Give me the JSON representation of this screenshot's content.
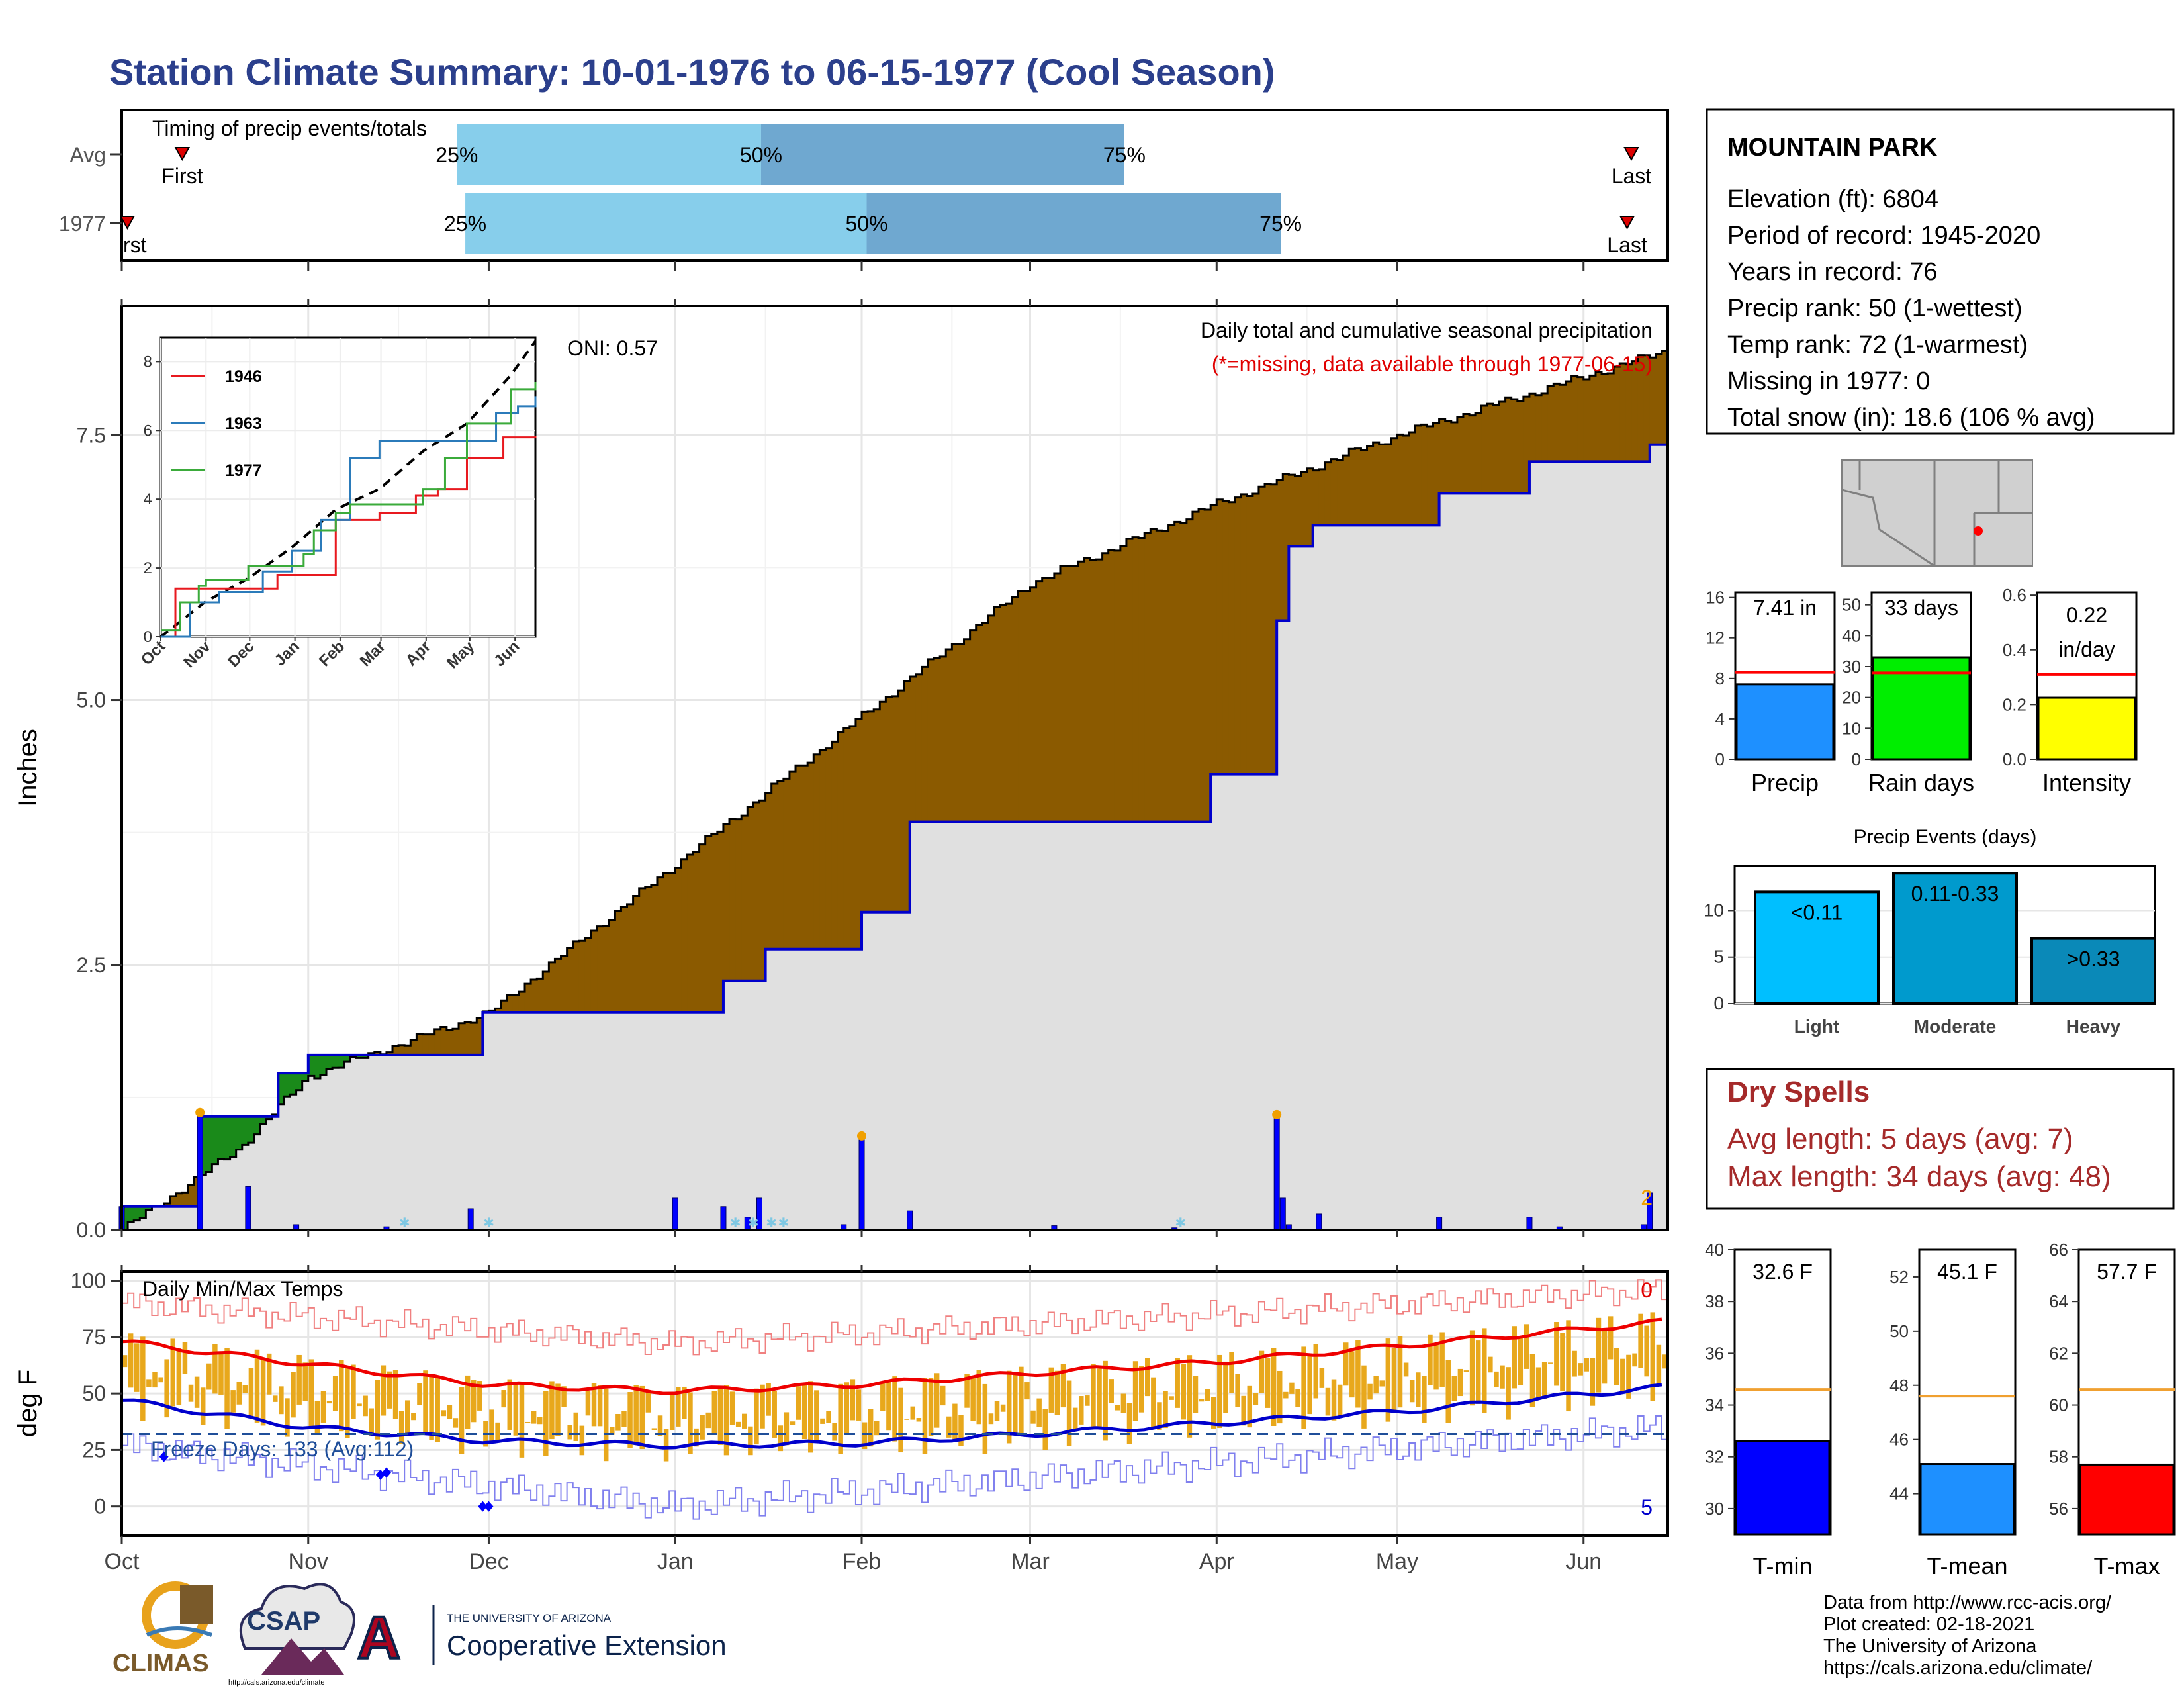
{
  "title": "Station Climate Summary: 10-01-1976 to 06-15-1977 (Cool Season)",
  "timing_panel": {
    "label": "Timing of precip events/totals",
    "rows": [
      {
        "label": "Avg",
        "first_day": 14,
        "q25": 79,
        "q50": 151,
        "q75": 237,
        "last_day": 357
      },
      {
        "label": "1977",
        "first_day": 1,
        "q25": 81,
        "q50": 176,
        "q75": 274,
        "last_day": 356
      }
    ],
    "first_label": "First",
    "first_label_cropped": "rst",
    "last_label": "Last",
    "pct_labels": [
      "25%",
      "50%",
      "75%"
    ]
  },
  "main_panel": {
    "ylabel": "Inches",
    "yticks": [
      "0.0",
      "2.5",
      "5.0",
      "7.5"
    ],
    "oni": "ONI: 0.57",
    "caption1": "Daily total and cumulative seasonal precipitation",
    "caption2": "(*=missing, data available through 1977-06-15)",
    "corner_count": "2"
  },
  "temp_panel": {
    "ylabel": "deg F",
    "yticks": [
      "0",
      "25",
      "50",
      "75",
      "100"
    ],
    "title": "Daily Min/Max Temps",
    "freeze_label": "Freeze Days: 133 (Avg:112)",
    "record_high_count": "0",
    "record_low_count": "5",
    "freeze_line": 32
  },
  "months": [
    "Oct",
    "Nov",
    "Dec",
    "Jan",
    "Feb",
    "Mar",
    "Apr",
    "May",
    "Jun"
  ],
  "station": {
    "name": "MOUNTAIN PARK",
    "lines": [
      "Elevation (ft): 6804",
      "Period of record: 1945-2020",
      "Years in record: 76",
      "Precip rank: 50 (1-wettest)",
      "Temp rank: 72 (1-warmest)",
      "Missing in 1977: 0",
      "Total snow (in): 18.6 (106 % avg)"
    ]
  },
  "inset": {
    "yticks": [
      "0",
      "2",
      "4",
      "6",
      "8"
    ],
    "months": [
      "Oct",
      "Nov",
      "Dec",
      "Jan",
      "Feb",
      "Mar",
      "Apr",
      "May",
      "Jun"
    ],
    "legend": [
      {
        "name": "1946",
        "color": "#e8191f"
      },
      {
        "name": "1963",
        "color": "#2b7bba"
      },
      {
        "name": "1977",
        "color": "#3bab3b"
      }
    ]
  },
  "small_bars": [
    {
      "label": "Precip",
      "value_label": "7.41 in",
      "value": 7.41,
      "avg": 8.6,
      "ymax": 16.5,
      "ticks": [
        "0",
        "4",
        "8",
        "12",
        "16"
      ],
      "tickvals": [
        0,
        4,
        8,
        12,
        16
      ],
      "color": "#1e90ff"
    },
    {
      "label": "Rain days",
      "value_label": "33 days",
      "value": 33,
      "avg": 28,
      "ymax": 54,
      "ticks": [
        "0",
        "10",
        "20",
        "30",
        "40",
        "50"
      ],
      "tickvals": [
        0,
        10,
        20,
        30,
        40,
        50
      ],
      "color": "#00ee00"
    },
    {
      "label": "Intensity",
      "value_label": "0.22\nin/day",
      "value_line1": "0.22",
      "value_line2": "in/day",
      "value": 0.225,
      "avg": 0.31,
      "ymax": 0.61,
      "ticks": [
        "0.0",
        "0.2",
        "0.4",
        "0.6"
      ],
      "tickvals": [
        0,
        0.2,
        0.4,
        0.6
      ],
      "color": "#ffff00"
    }
  ],
  "events": {
    "title": "Precip Events (days)",
    "categories": [
      "Light",
      "Moderate",
      "Heavy"
    ],
    "labels": [
      "<0.11",
      "0.11-0.33",
      ">0.33"
    ],
    "values": [
      12,
      14,
      7
    ],
    "colors": [
      "#00bfff",
      "#009acd",
      "#0a89b8"
    ],
    "ticks": [
      "0",
      "5",
      "10"
    ]
  },
  "dry_spells": {
    "title": "Dry Spells",
    "avg": "Avg length: 5 days (avg: 7)",
    "max": "Max length: 34 days (avg: 48)"
  },
  "temp_bars": [
    {
      "label": "T-min",
      "value_label": "32.6 F",
      "value": 32.6,
      "avg": 34.6,
      "ymin": 29,
      "ymax": 40,
      "ticks": [
        "30",
        "32",
        "34",
        "36",
        "38",
        "40"
      ],
      "tickvals": [
        30,
        32,
        34,
        36,
        38,
        40
      ],
      "color": "#0000ff"
    },
    {
      "label": "T-mean",
      "value_label": "45.1 F",
      "value": 45.1,
      "avg": 47.6,
      "ymin": 42.5,
      "ymax": 53,
      "ticks": [
        "44",
        "46",
        "48",
        "50",
        "52"
      ],
      "tickvals": [
        44,
        46,
        48,
        50,
        52
      ],
      "color": "#1e90ff"
    },
    {
      "label": "T-max",
      "value_label": "57.7 F",
      "value": 57.7,
      "avg": 60.6,
      "ymin": 55,
      "ymax": 66,
      "ticks": [
        "56",
        "58",
        "60",
        "62",
        "64",
        "66"
      ],
      "tickvals": [
        56,
        58,
        60,
        62,
        64,
        66
      ],
      "color": "#ff0000"
    }
  ],
  "credits": [
    "Data from http://www.rcc-acis.org/",
    "Plot created: 02-18-2021",
    "The University of Arizona",
    "https://cals.arizona.edu/climate/"
  ],
  "logos": {
    "climas": "CLIMAS",
    "csap": "CSAP",
    "csap_url": "http://cals.arizona.edu/climate",
    "ua_small": "THE UNIVERSITY OF ARIZONA",
    "ua_big": "Cooperative Extension",
    "ua_letter": "A"
  },
  "colors": {
    "title": "#2b3f8c",
    "deficit": "#8b5a00",
    "surplus": "#1a8a1a",
    "observed_line": "#0000cc",
    "daily_bar": "#0000ff",
    "temp_bar": "#e8a81c",
    "avg_high": "#ee0000",
    "avg_low": "#0000cc",
    "record_high": "#f08080",
    "record_low": "#8080ee",
    "dry_title": "#a52a2a",
    "q_light": "#87ceeb",
    "q_dark": "#6fa8d0"
  },
  "chart_data": [
    {
      "type": "area",
      "title": "Daily total and cumulative seasonal precipitation",
      "ylabel": "Inches",
      "x_range": [
        "1976-10-01",
        "1977-06-15"
      ],
      "ylim": [
        0,
        8.9
      ],
      "series": [
        {
          "name": "cumulative average",
          "x": [
            "1976-10-01",
            "1976-10-20",
            "1976-11-01",
            "1976-12-01",
            "1977-01-01",
            "1977-02-01",
            "1977-03-01",
            "1977-04-01",
            "1977-05-01",
            "1977-06-15"
          ],
          "values": [
            0.0,
            0.75,
            1.45,
            2.05,
            3.45,
            4.85,
            6.1,
            6.85,
            7.5,
            8.3
          ]
        },
        {
          "name": "cumulative 1977",
          "x": [
            "1976-10-01",
            "1976-10-14",
            "1976-10-27",
            "1976-11-01",
            "1976-11-30",
            "1977-01-01",
            "1977-01-09",
            "1977-01-16",
            "1977-02-01",
            "1977-02-09",
            "1977-03-31",
            "1977-04-11",
            "1977-04-13",
            "1977-04-17",
            "1977-05-08",
            "1977-05-23",
            "1977-06-12",
            "1977-06-15"
          ],
          "values": [
            0.22,
            1.07,
            1.48,
            1.65,
            2.05,
            2.05,
            2.35,
            2.65,
            3.0,
            3.85,
            4.3,
            5.75,
            6.45,
            6.65,
            6.95,
            7.25,
            7.41,
            7.41
          ]
        },
        {
          "name": "daily precip",
          "x": [
            "1976-10-01",
            "1976-10-14",
            "1976-10-22",
            "1976-10-30",
            "1976-11-14",
            "1976-11-28",
            "1977-01-01",
            "1977-01-09",
            "1977-01-13",
            "1977-01-15",
            "1977-01-29",
            "1977-02-01",
            "1977-02-09",
            "1977-03-05",
            "1977-03-25",
            "1977-04-11",
            "1977-04-12",
            "1977-04-13",
            "1977-04-18",
            "1977-05-08",
            "1977-05-23",
            "1977-05-28",
            "1977-06-11",
            "1977-06-12"
          ],
          "values": [
            0.22,
            1.07,
            0.41,
            0.05,
            0.03,
            0.2,
            0.3,
            0.22,
            0.12,
            0.3,
            0.05,
            0.85,
            0.18,
            0.04,
            0.02,
            1.05,
            0.3,
            0.05,
            0.15,
            0.12,
            0.12,
            0.03,
            0.05,
            0.35
          ]
        }
      ]
    },
    {
      "type": "line",
      "title": "Daily Min/Max Temps",
      "ylabel": "deg F",
      "ylim": [
        -10,
        100
      ],
      "series": [
        {
          "name": "average high",
          "x": [
            "1976-10-01",
            "1976-11-01",
            "1976-12-01",
            "1977-01-01",
            "1977-02-01",
            "1977-03-01",
            "1977-04-01",
            "1977-05-01",
            "1977-06-15"
          ],
          "values": [
            73,
            63,
            54,
            51,
            54,
            59,
            64,
            71,
            82
          ]
        },
        {
          "name": "average low",
          "x": [
            "1976-10-01",
            "1976-11-01",
            "1976-12-01",
            "1977-01-01",
            "1977-02-01",
            "1977-03-01",
            "1977-04-01",
            "1977-05-01",
            "1977-06-15"
          ],
          "values": [
            47,
            35,
            29,
            27,
            28,
            32,
            37,
            42,
            53
          ]
        },
        {
          "name": "record high",
          "x": [
            "1976-10-01",
            "1977-01-01",
            "1977-06-15"
          ],
          "values": [
            90,
            72,
            96
          ]
        },
        {
          "name": "record low",
          "x": [
            "1976-10-01",
            "1977-01-01",
            "1977-06-15"
          ],
          "values": [
            27,
            0,
            35
          ]
        }
      ]
    },
    {
      "type": "line",
      "x_labels": [
        "Oct",
        "Nov",
        "Dec",
        "Jan",
        "Feb",
        "Mar",
        "Apr",
        "May",
        "Jun"
      ],
      "ylim": [
        0,
        8.7
      ],
      "series": [
        {
          "name": "average",
          "x": [
            0,
            30,
            60,
            90,
            120,
            150,
            180,
            210,
            240,
            257
          ],
          "values": [
            0,
            1.0,
            1.7,
            2.6,
            3.7,
            4.3,
            5.4,
            6.2,
            7.6,
            8.6
          ]
        },
        {
          "name": "1946",
          "x": [
            0,
            10,
            60,
            80,
            120,
            150,
            175,
            190,
            210,
            235,
            257
          ],
          "values": [
            0,
            1.4,
            1.4,
            1.8,
            3.4,
            3.6,
            4.1,
            4.3,
            5.2,
            5.8,
            5.85
          ]
        },
        {
          "name": "1963",
          "x": [
            0,
            20,
            40,
            70,
            90,
            110,
            130,
            150,
            170,
            190,
            205,
            230,
            245,
            257
          ],
          "values": [
            0,
            1.0,
            1.3,
            1.9,
            2.5,
            3.4,
            5.2,
            5.7,
            5.7,
            5.7,
            5.7,
            6.5,
            6.7,
            7.0
          ]
        },
        {
          "name": "1977",
          "x": [
            0,
            13,
            26,
            31,
            60,
            90,
            98,
            105,
            120,
            130,
            180,
            195,
            210,
            240,
            257
          ],
          "values": [
            0.2,
            1.0,
            1.48,
            1.65,
            2.05,
            2.05,
            2.4,
            3.1,
            3.6,
            3.85,
            4.3,
            5.2,
            6.2,
            7.2,
            7.41
          ]
        }
      ]
    },
    {
      "type": "bar",
      "categories": [
        "Precip",
        "Rain days",
        "Intensity"
      ],
      "series": [
        {
          "name": "1977",
          "values": [
            7.41,
            33,
            0.22
          ]
        }
      ]
    },
    {
      "type": "bar",
      "title": "Precip Events (days)",
      "categories": [
        "Light",
        "Moderate",
        "Heavy"
      ],
      "values": [
        12,
        14,
        7
      ]
    },
    {
      "type": "bar",
      "categories": [
        "T-min",
        "T-mean",
        "T-max"
      ],
      "values": [
        32.6,
        45.1,
        57.7
      ]
    }
  ]
}
